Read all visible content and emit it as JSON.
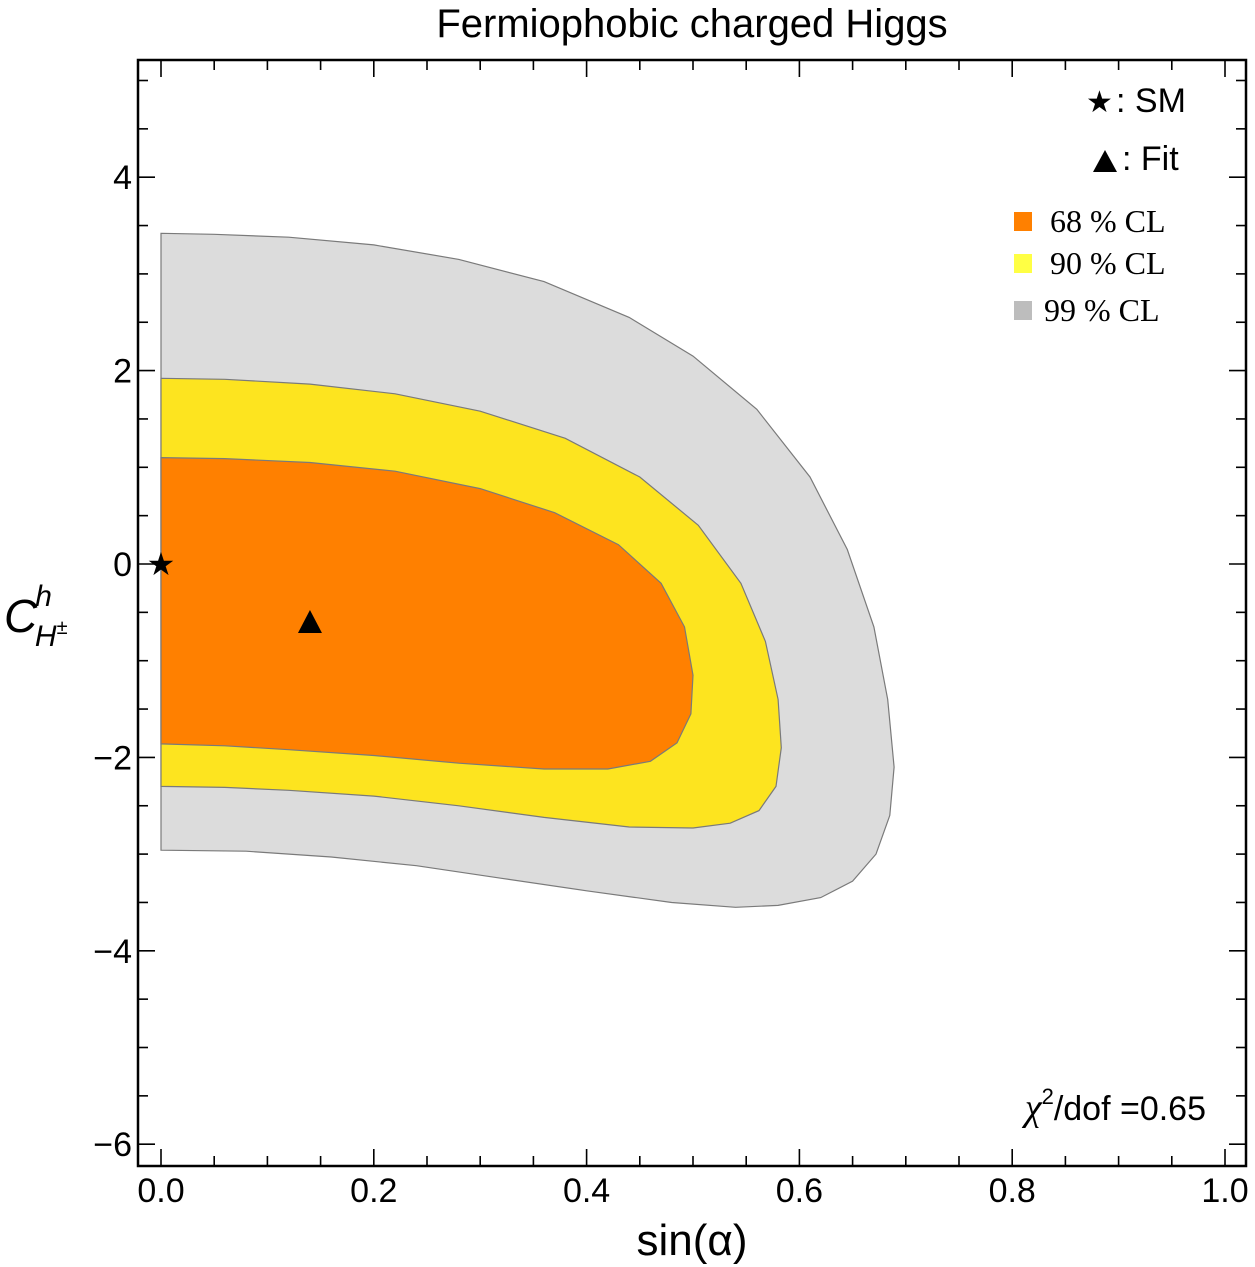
{
  "chart_data": {
    "type": "contour",
    "title": "Fermiophobic charged Higgs",
    "xlabel": "sin(α)",
    "ylabel": {
      "base": "C",
      "sup": "h",
      "sub": "H",
      "sub_sup": "±"
    },
    "xlim": [
      0.0,
      1.0
    ],
    "ylim": [
      -6.2,
      5.2
    ],
    "x_ticks": [
      {
        "value": 0.0,
        "label": "0.0"
      },
      {
        "value": 0.2,
        "label": "0.2"
      },
      {
        "value": 0.4,
        "label": "0.4"
      },
      {
        "value": 0.6,
        "label": "0.6"
      },
      {
        "value": 0.8,
        "label": "0.8"
      },
      {
        "value": 1.0,
        "label": "1.0"
      }
    ],
    "y_ticks": [
      {
        "value": 4,
        "label": "4"
      },
      {
        "value": 2,
        "label": "2"
      },
      {
        "value": 0,
        "label": "0"
      },
      {
        "value": -2,
        "label": "−2"
      },
      {
        "value": -4,
        "label": "−4"
      },
      {
        "value": -6,
        "label": "−6"
      }
    ],
    "x_minor_step": 0.05,
    "y_minor_step": 0.5,
    "regions": [
      {
        "name": "99 % CL",
        "color": "#dcdcdc",
        "boundary": [
          [
            0.0,
            3.42
          ],
          [
            0.05,
            3.41
          ],
          [
            0.12,
            3.38
          ],
          [
            0.2,
            3.3
          ],
          [
            0.28,
            3.15
          ],
          [
            0.36,
            2.92
          ],
          [
            0.44,
            2.55
          ],
          [
            0.5,
            2.15
          ],
          [
            0.56,
            1.6
          ],
          [
            0.61,
            0.9
          ],
          [
            0.645,
            0.15
          ],
          [
            0.67,
            -0.65
          ],
          [
            0.683,
            -1.4
          ],
          [
            0.689,
            -2.1
          ],
          [
            0.685,
            -2.6
          ],
          [
            0.672,
            -3.0
          ],
          [
            0.65,
            -3.28
          ],
          [
            0.62,
            -3.45
          ],
          [
            0.58,
            -3.53
          ],
          [
            0.54,
            -3.55
          ],
          [
            0.48,
            -3.5
          ],
          [
            0.4,
            -3.38
          ],
          [
            0.32,
            -3.25
          ],
          [
            0.24,
            -3.12
          ],
          [
            0.16,
            -3.03
          ],
          [
            0.08,
            -2.97
          ],
          [
            0.0,
            -2.96
          ]
        ]
      },
      {
        "name": "90 % CL",
        "color": "#fde41f",
        "boundary": [
          [
            0.0,
            1.92
          ],
          [
            0.06,
            1.91
          ],
          [
            0.14,
            1.86
          ],
          [
            0.22,
            1.76
          ],
          [
            0.3,
            1.58
          ],
          [
            0.38,
            1.3
          ],
          [
            0.45,
            0.9
          ],
          [
            0.505,
            0.4
          ],
          [
            0.545,
            -0.2
          ],
          [
            0.568,
            -0.8
          ],
          [
            0.58,
            -1.4
          ],
          [
            0.583,
            -1.9
          ],
          [
            0.578,
            -2.3
          ],
          [
            0.562,
            -2.55
          ],
          [
            0.535,
            -2.68
          ],
          [
            0.5,
            -2.73
          ],
          [
            0.44,
            -2.72
          ],
          [
            0.36,
            -2.62
          ],
          [
            0.28,
            -2.5
          ],
          [
            0.2,
            -2.4
          ],
          [
            0.12,
            -2.34
          ],
          [
            0.06,
            -2.31
          ],
          [
            0.0,
            -2.3
          ]
        ]
      },
      {
        "name": "68 % CL",
        "color": "#ff8000",
        "boundary": [
          [
            0.0,
            1.1
          ],
          [
            0.06,
            1.09
          ],
          [
            0.14,
            1.05
          ],
          [
            0.22,
            0.96
          ],
          [
            0.3,
            0.78
          ],
          [
            0.37,
            0.53
          ],
          [
            0.43,
            0.2
          ],
          [
            0.47,
            -0.2
          ],
          [
            0.492,
            -0.65
          ],
          [
            0.5,
            -1.15
          ],
          [
            0.498,
            -1.55
          ],
          [
            0.485,
            -1.85
          ],
          [
            0.46,
            -2.04
          ],
          [
            0.42,
            -2.12
          ],
          [
            0.36,
            -2.12
          ],
          [
            0.28,
            -2.06
          ],
          [
            0.2,
            -1.98
          ],
          [
            0.12,
            -1.92
          ],
          [
            0.06,
            -1.88
          ],
          [
            0.0,
            -1.86
          ]
        ]
      }
    ],
    "points": [
      {
        "name": "SM",
        "label": ": SM",
        "marker": "star",
        "x": 0.0,
        "y": 0.0
      },
      {
        "name": "Fit",
        "label": ": Fit",
        "marker": "triangle",
        "x": 0.14,
        "y": -0.6
      }
    ],
    "legend": {
      "position": "top-right",
      "entries": [
        {
          "label": "68 % CL",
          "swatch_color": "#ff8000"
        },
        {
          "label": "90 % CL",
          "swatch_color": "#ffff44"
        },
        {
          "label": "99 % CL",
          "swatch_color": "#bdbdbd"
        }
      ]
    },
    "annotation": {
      "prefix": "χ",
      "power": "2",
      "text": "/dof =0.65"
    }
  }
}
